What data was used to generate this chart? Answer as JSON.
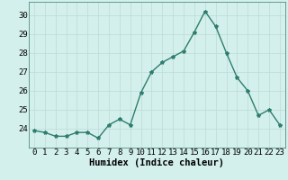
{
  "x": [
    0,
    1,
    2,
    3,
    4,
    5,
    6,
    7,
    8,
    9,
    10,
    11,
    12,
    13,
    14,
    15,
    16,
    17,
    18,
    19,
    20,
    21,
    22,
    23
  ],
  "y": [
    23.9,
    23.8,
    23.6,
    23.6,
    23.8,
    23.8,
    23.5,
    24.2,
    24.5,
    24.2,
    25.9,
    27.0,
    27.5,
    27.8,
    28.1,
    29.1,
    30.2,
    29.4,
    28.0,
    26.7,
    26.0,
    24.7,
    25.0,
    24.2
  ],
  "line_color": "#2e7d6e",
  "marker": "*",
  "marker_color": "#2e7d6e",
  "marker_size": 3,
  "background_color": "#d4f0ec",
  "grid_color": "#c0ddd9",
  "xlabel": "Humidex (Indice chaleur)",
  "xlabel_fontsize": 7.5,
  "ylim": [
    23.0,
    30.7
  ],
  "yticks": [
    24,
    25,
    26,
    27,
    28,
    29,
    30
  ],
  "xticks": [
    0,
    1,
    2,
    3,
    4,
    5,
    6,
    7,
    8,
    9,
    10,
    11,
    12,
    13,
    14,
    15,
    16,
    17,
    18,
    19,
    20,
    21,
    22,
    23
  ],
  "tick_fontsize": 6.5,
  "line_width": 1.0
}
